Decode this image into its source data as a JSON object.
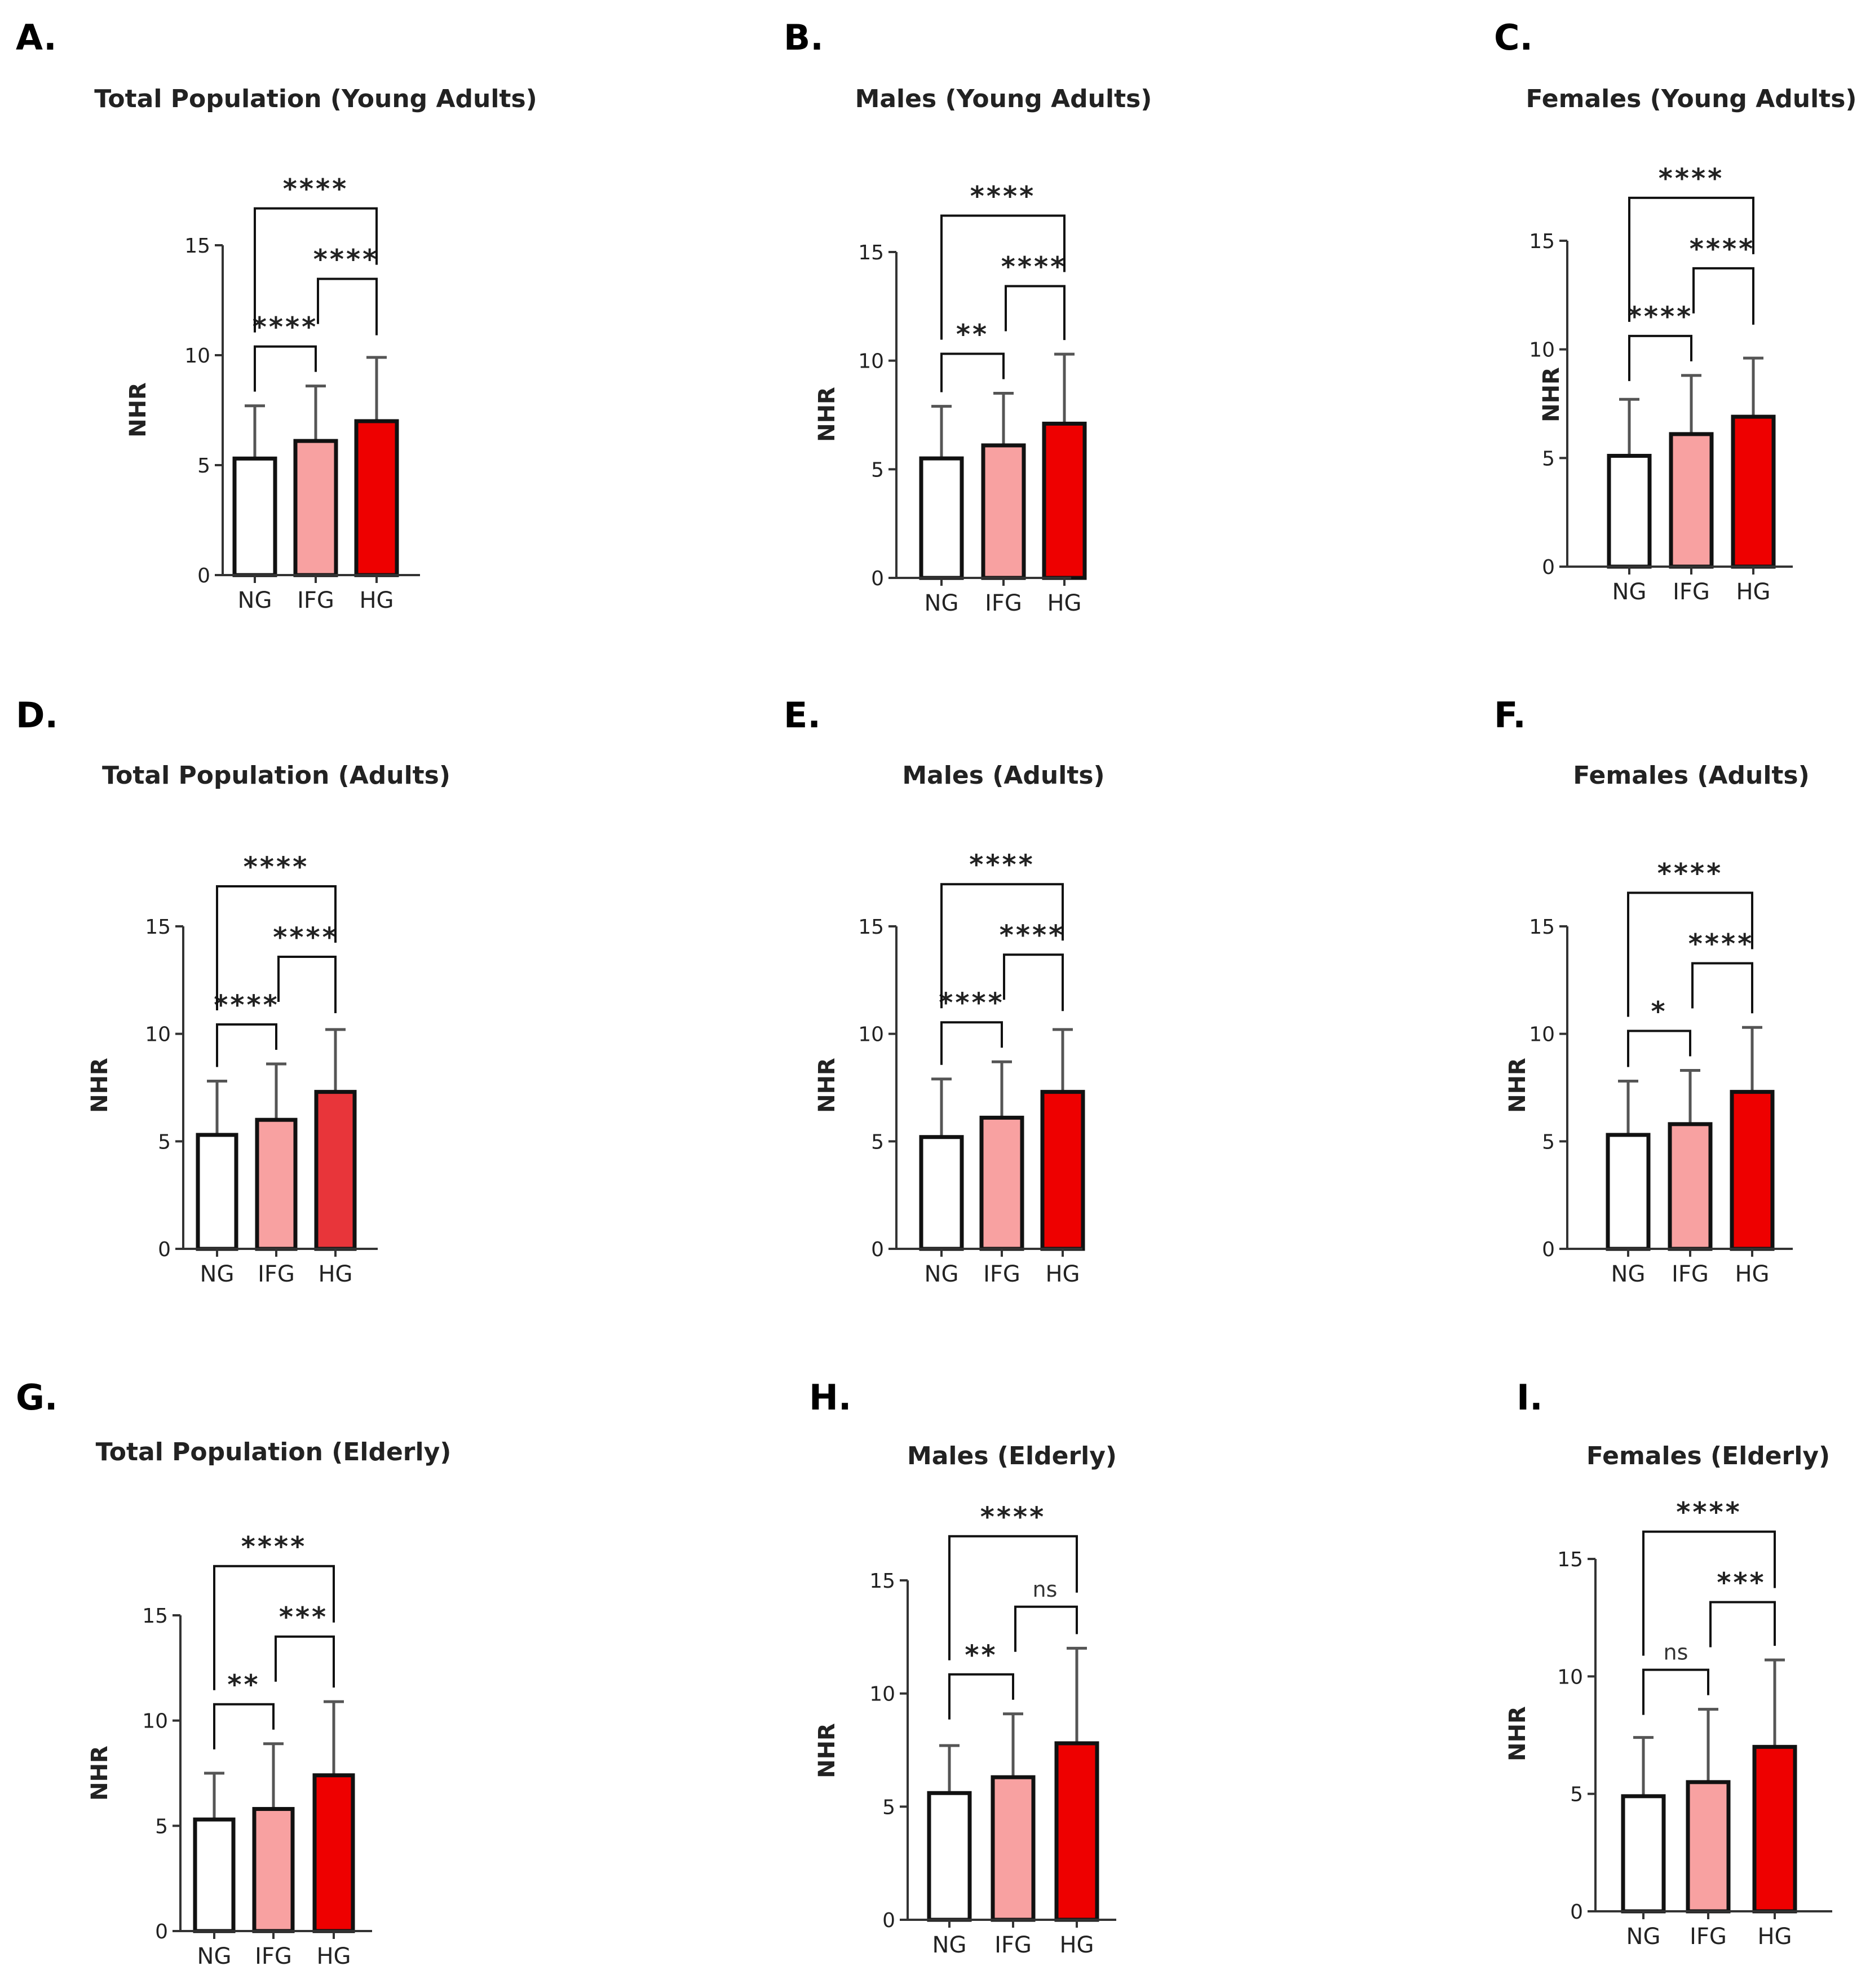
{
  "figure": {
    "ylabel": "NHR",
    "categories": [
      "NG",
      "IFG",
      "HG"
    ],
    "yticks": [
      "0",
      "5",
      "10",
      "15"
    ],
    "colors": {
      "NG": "#ffffff",
      "IFG": "#f8a1a1",
      "HG": "#ee0000",
      "HG_alt": "#e8353a",
      "stroke": "#111111",
      "errorbar": "#555555"
    }
  },
  "chart_data": [
    {
      "panel": "A.",
      "type": "bar",
      "title": "Total Population (Young Adults)",
      "categories": [
        "NG",
        "IFG",
        "HG"
      ],
      "values": [
        5.3,
        6.1,
        7.0
      ],
      "errors": [
        2.4,
        2.5,
        2.9
      ],
      "ylabel": "NHR",
      "ylim": [
        0,
        15
      ],
      "yticks": [
        0,
        5,
        10,
        15
      ],
      "significance": [
        {
          "from": "NG",
          "to": "IFG",
          "label": "****"
        },
        {
          "from": "IFG",
          "to": "HG",
          "label": "****"
        },
        {
          "from": "NG",
          "to": "HG",
          "label": "****"
        }
      ]
    },
    {
      "panel": "B.",
      "type": "bar",
      "title": "Males (Young Adults)",
      "categories": [
        "NG",
        "IFG",
        "HG"
      ],
      "values": [
        5.5,
        6.1,
        7.1
      ],
      "errors": [
        2.4,
        2.4,
        3.2
      ],
      "ylabel": "NHR",
      "ylim": [
        0,
        15
      ],
      "yticks": [
        0,
        5,
        10,
        15
      ],
      "significance": [
        {
          "from": "NG",
          "to": "IFG",
          "label": "**"
        },
        {
          "from": "IFG",
          "to": "HG",
          "label": "****"
        },
        {
          "from": "NG",
          "to": "HG",
          "label": "****"
        }
      ]
    },
    {
      "panel": "C.",
      "type": "bar",
      "title": "Females (Young Adults)",
      "categories": [
        "NG",
        "IFG",
        "HG"
      ],
      "values": [
        5.1,
        6.1,
        6.9
      ],
      "errors": [
        2.6,
        2.7,
        2.7
      ],
      "ylabel": "NHR",
      "ylim": [
        0,
        15
      ],
      "yticks": [
        0,
        5,
        10,
        15
      ],
      "significance": [
        {
          "from": "NG",
          "to": "IFG",
          "label": "****"
        },
        {
          "from": "IFG",
          "to": "HG",
          "label": "****"
        },
        {
          "from": "NG",
          "to": "HG",
          "label": "****"
        }
      ]
    },
    {
      "panel": "D.",
      "type": "bar",
      "title": "Total Population (Adults)",
      "categories": [
        "NG",
        "IFG",
        "HG"
      ],
      "values": [
        5.3,
        6.0,
        7.3
      ],
      "errors": [
        2.5,
        2.6,
        2.9
      ],
      "ylabel": "NHR",
      "ylim": [
        0,
        15
      ],
      "yticks": [
        0,
        5,
        10,
        15
      ],
      "significance": [
        {
          "from": "NG",
          "to": "IFG",
          "label": "****"
        },
        {
          "from": "IFG",
          "to": "HG",
          "label": "****"
        },
        {
          "from": "NG",
          "to": "HG",
          "label": "****"
        }
      ]
    },
    {
      "panel": "E.",
      "type": "bar",
      "title": "Males (Adults)",
      "categories": [
        "NG",
        "IFG",
        "HG"
      ],
      "values": [
        5.2,
        6.1,
        7.3
      ],
      "errors": [
        2.7,
        2.6,
        2.9
      ],
      "ylabel": "NHR",
      "ylim": [
        0,
        15
      ],
      "yticks": [
        0,
        5,
        10,
        15
      ],
      "significance": [
        {
          "from": "NG",
          "to": "IFG",
          "label": "****"
        },
        {
          "from": "IFG",
          "to": "HG",
          "label": "****"
        },
        {
          "from": "NG",
          "to": "HG",
          "label": "****"
        }
      ]
    },
    {
      "panel": "F.",
      "type": "bar",
      "title": "Females (Adults)",
      "categories": [
        "NG",
        "IFG",
        "HG"
      ],
      "values": [
        5.3,
        5.8,
        7.3
      ],
      "errors": [
        2.5,
        2.5,
        3.0
      ],
      "ylabel": "NHR",
      "ylim": [
        0,
        15
      ],
      "yticks": [
        0,
        5,
        10,
        15
      ],
      "significance": [
        {
          "from": "NG",
          "to": "IFG",
          "label": "*"
        },
        {
          "from": "IFG",
          "to": "HG",
          "label": "****"
        },
        {
          "from": "NG",
          "to": "HG",
          "label": "****"
        }
      ]
    },
    {
      "panel": "G.",
      "type": "bar",
      "title": "Total Population (Elderly)",
      "categories": [
        "NG",
        "IFG",
        "HG"
      ],
      "values": [
        5.3,
        5.8,
        7.4
      ],
      "errors": [
        2.2,
        3.1,
        3.5
      ],
      "ylabel": "NHR",
      "ylim": [
        0,
        15
      ],
      "yticks": [
        0,
        5,
        10,
        15
      ],
      "significance": [
        {
          "from": "NG",
          "to": "IFG",
          "label": "**"
        },
        {
          "from": "IFG",
          "to": "HG",
          "label": "***"
        },
        {
          "from": "NG",
          "to": "HG",
          "label": "****"
        }
      ]
    },
    {
      "panel": "H.",
      "type": "bar",
      "title": "Males (Elderly)",
      "categories": [
        "NG",
        "IFG",
        "HG"
      ],
      "values": [
        5.6,
        6.3,
        7.8
      ],
      "errors": [
        2.1,
        2.8,
        4.2
      ],
      "ylabel": "NHR",
      "ylim": [
        0,
        15
      ],
      "yticks": [
        0,
        5,
        10,
        15
      ],
      "significance": [
        {
          "from": "NG",
          "to": "IFG",
          "label": "**"
        },
        {
          "from": "IFG",
          "to": "HG",
          "label": "ns"
        },
        {
          "from": "NG",
          "to": "HG",
          "label": "****"
        }
      ]
    },
    {
      "panel": "I.",
      "type": "bar",
      "title": "Females (Elderly)",
      "categories": [
        "NG",
        "IFG",
        "HG"
      ],
      "values": [
        4.9,
        5.5,
        7.0
      ],
      "errors": [
        2.5,
        3.1,
        3.7
      ],
      "ylabel": "NHR",
      "ylim": [
        0,
        15
      ],
      "yticks": [
        0,
        5,
        10,
        15
      ],
      "significance": [
        {
          "from": "NG",
          "to": "IFG",
          "label": "ns"
        },
        {
          "from": "IFG",
          "to": "HG",
          "label": "***"
        },
        {
          "from": "NG",
          "to": "HG",
          "label": "****"
        }
      ]
    }
  ]
}
